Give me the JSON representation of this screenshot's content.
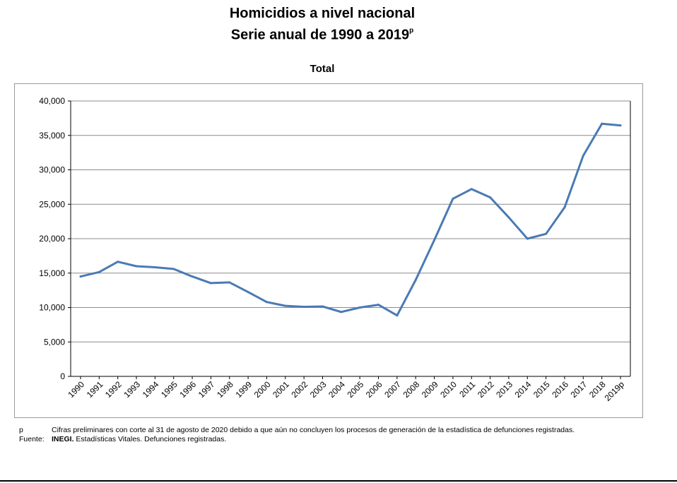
{
  "header": {
    "title_line1": "Homicidios a nivel nacional",
    "title_line2": "Serie anual de 1990 a 2019",
    "title_sup": "p"
  },
  "chart_data": {
    "type": "line",
    "title": "Total",
    "categories": [
      "1990",
      "1991",
      "1992",
      "1993",
      "1994",
      "1995",
      "1996",
      "1997",
      "1998",
      "1999",
      "2000",
      "2001",
      "2002",
      "2003",
      "2004",
      "2005",
      "2006",
      "2007",
      "2008",
      "2009",
      "2010",
      "2011",
      "2012",
      "2013",
      "2014",
      "2015",
      "2016",
      "2017",
      "2018",
      "2019p"
    ],
    "series": [
      {
        "values": [
          14500,
          15150,
          16650,
          16000,
          15850,
          15600,
          14500,
          13550,
          13650,
          12250,
          10800,
          10250,
          10100,
          10150,
          9350,
          10000,
          10400,
          8850,
          14000,
          19800,
          25800,
          27200,
          26000,
          23100,
          20000,
          20700,
          24550,
          32050,
          36700,
          36450
        ]
      }
    ],
    "yticks": [
      "0",
      "5,000",
      "10,000",
      "15,000",
      "20,000",
      "25,000",
      "30,000",
      "35,000",
      "40,000"
    ],
    "ylim": [
      0,
      40000
    ],
    "grid": true,
    "line_color": "#4a7ab5"
  },
  "notes": {
    "footnote_key": "p",
    "footnote_text": "Cifras preliminares con corte al 31 de agosto de 2020 debido a que aún no concluyen los procesos de generación de la estadística de defunciones registradas.",
    "source_key": "Fuente:",
    "source_bold": "INEGI.",
    "source_text": " Estadísticas Vitales. Defunciones registradas."
  }
}
